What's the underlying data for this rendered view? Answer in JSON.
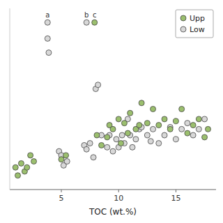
{
  "chart_data": {
    "type": "scatter",
    "xlabel": "TOC (wt.%)",
    "xlim": [
      0.5,
      18.5
    ],
    "ylim": [
      0,
      9
    ],
    "xticks": [
      5,
      10,
      15
    ],
    "yticks": [],
    "tick_labels": "x",
    "grid": false,
    "legend": "upper right",
    "series": [
      {
        "name": "Upp",
        "color": "#9bbf6e",
        "x": [
          1.0,
          1.2,
          1.5,
          1.8,
          2.0,
          2.3,
          2.6,
          5.0,
          5.4,
          8.1,
          8.5,
          9.0,
          9.2,
          9.5,
          10.0,
          10.2,
          10.5,
          10.8,
          11.0,
          11.5,
          11.8,
          12.0,
          12.5,
          13.0,
          13.5,
          14.0,
          14.5,
          15.0,
          15.5,
          16.0,
          16.5,
          17.0,
          17.5,
          17.8,
          7.9
        ],
        "values": [
          1.1,
          0.7,
          1.3,
          0.9,
          1.1,
          1.7,
          1.4,
          1.5,
          1.7,
          2.7,
          2.2,
          2.6,
          3.2,
          3.0,
          3.5,
          2.3,
          3.3,
          2.8,
          3.8,
          3.0,
          3.2,
          4.3,
          3.3,
          4.0,
          3.2,
          3.5,
          3.0,
          3.4,
          4.0,
          2.8,
          3.2,
          3.5,
          2.6,
          3.0,
          8.3
        ]
      },
      {
        "name": "Low",
        "color": "#d8d8d8",
        "x": [
          3.8,
          3.9,
          4.8,
          5.0,
          5.2,
          5.5,
          7.0,
          7.2,
          7.5,
          7.8,
          8.0,
          8.2,
          8.5,
          9.0,
          9.2,
          9.5,
          9.8,
          10.0,
          10.3,
          10.5,
          10.8,
          11.0,
          11.2,
          11.5,
          11.8,
          12.0,
          12.5,
          12.8,
          13.0,
          13.5,
          14.0,
          14.5,
          15.0,
          15.5,
          16.0,
          16.5,
          17.0,
          17.5,
          3.8,
          7.2
        ],
        "values": [
          7.5,
          6.8,
          1.9,
          1.7,
          1.2,
          1.4,
          2.2,
          2.0,
          2.3,
          1.6,
          5.0,
          5.2,
          2.7,
          2.1,
          2.7,
          1.9,
          2.5,
          2.1,
          2.7,
          2.3,
          3.5,
          2.7,
          2.1,
          2.5,
          3.0,
          3.1,
          2.7,
          2.4,
          3.0,
          2.3,
          2.7,
          3.1,
          2.5,
          3.0,
          3.3,
          2.7,
          3.0,
          3.5,
          8.3,
          8.3
        ]
      }
    ],
    "annotations": [
      {
        "text": "a",
        "x": 3.8,
        "y": 8.3
      },
      {
        "text": "b",
        "x": 7.2,
        "y": 8.3
      },
      {
        "text": "c",
        "x": 7.9,
        "y": 8.3
      }
    ]
  }
}
